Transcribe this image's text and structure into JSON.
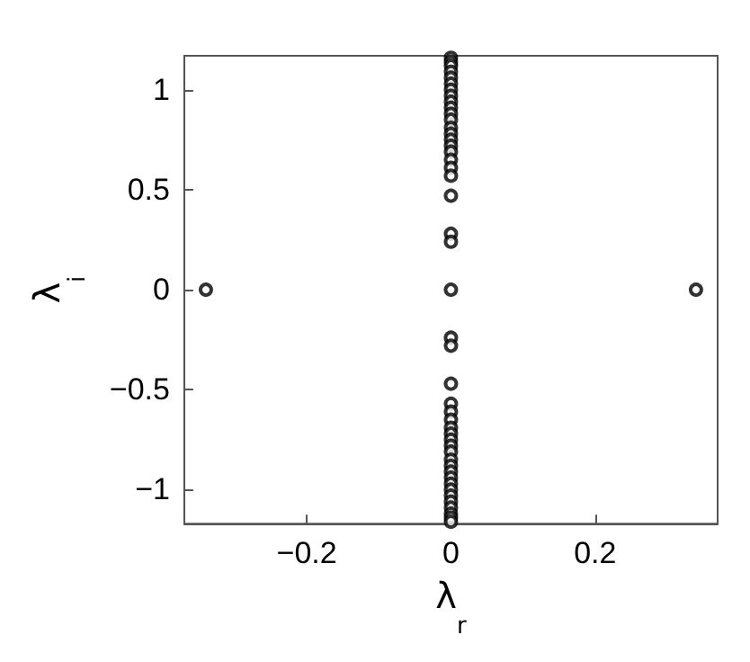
{
  "chart_data": {
    "type": "scatter",
    "xlabel": "λ$_{r}$",
    "ylabel": "λ$_{i}$",
    "x": [
      -0.34,
      0.34,
      0,
      0,
      0,
      0,
      0,
      0,
      0,
      0,
      0,
      0,
      0,
      0,
      0,
      0,
      0,
      0,
      0,
      0,
      0,
      0,
      0,
      0,
      0,
      0,
      0,
      0,
      0,
      0,
      0,
      0,
      0,
      0,
      0,
      0,
      0,
      0,
      0,
      0,
      0,
      0,
      0,
      0,
      0,
      0,
      0,
      0,
      0
    ],
    "values": [
      0,
      0,
      1.16,
      1.14,
      1.12,
      1.09,
      1.06,
      1.03,
      1.0,
      0.97,
      0.94,
      0.91,
      0.88,
      0.85,
      0.81,
      0.78,
      0.75,
      0.72,
      0.69,
      0.65,
      0.61,
      0.57,
      0.47,
      0.28,
      0.24,
      0,
      -0.24,
      -0.28,
      -0.47,
      -0.57,
      -0.61,
      -0.65,
      -0.69,
      -0.72,
      -0.75,
      -0.78,
      -0.81,
      -0.85,
      -0.88,
      -0.91,
      -0.94,
      -0.97,
      -1.0,
      -1.03,
      -1.06,
      -1.09,
      -1.12,
      -1.14,
      -1.16
    ],
    "color": "#000000",
    "marker": "circle",
    "grid": false,
    "xlim": [
      -0.37,
      0.37
    ],
    "ylim": [
      -1.17,
      1.17
    ],
    "xticks": [
      {
        "value": -0.2,
        "label": "−0.2"
      },
      0,
      0.2
    ],
    "yticks": [
      {
        "value": -1,
        "label": "−1"
      },
      {
        "value": -0.5,
        "label": "−0.5"
      },
      0,
      0.5,
      1
    ]
  }
}
